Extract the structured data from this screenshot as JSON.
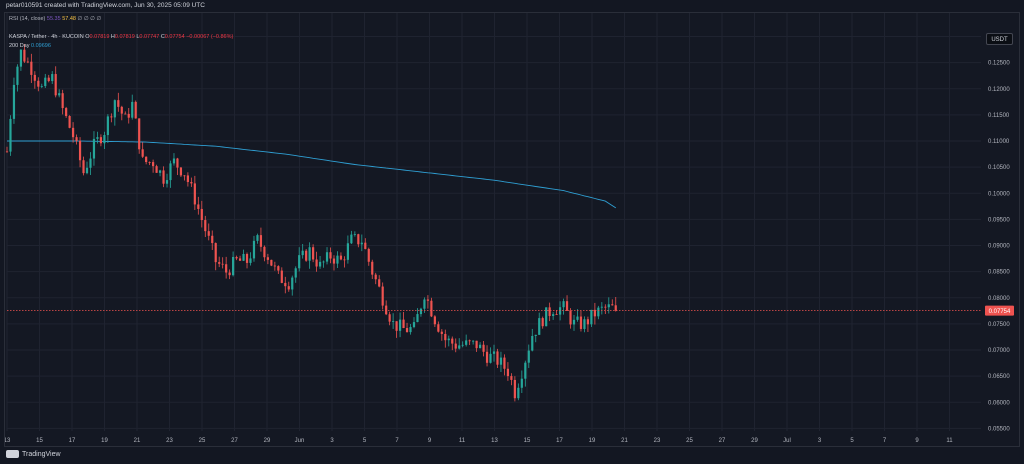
{
  "header": {
    "credit": "petar010591 created with TradingView.com, Jun 30, 2025 05:09 UTC"
  },
  "indicators": {
    "rsi": {
      "label": "RSI (14, close)",
      "value_a": "55.35",
      "value_b": "57.48",
      "trailing": "∅ ∅ ∅ ∅"
    },
    "ma": {
      "label": "200 Day",
      "value": "0.09696",
      "color": "#2f9fd3"
    }
  },
  "legend": {
    "symbol": "KASPA / Tether · 4h · KUCOIN",
    "o_label": "O",
    "o": "0.07819",
    "h_label": "H",
    "h": "0.07819",
    "l_label": "L",
    "l": "0.07747",
    "c_label": "C",
    "c": "0.07754",
    "change": "−0.00067 (−0.86%)"
  },
  "currency_button": "USDT",
  "footer": {
    "brand": "TradingView"
  },
  "chart_data": {
    "type": "candlestick",
    "interval": "4h",
    "up_color": "#26a69a",
    "down_color": "#ef5350",
    "last_price": 0.07754,
    "last_price_label": "0.07754",
    "y_range": [
      0.0545,
      0.1345
    ],
    "y_ticks": [
      "0.13000",
      "0.12500",
      "0.12000",
      "0.11500",
      "0.11000",
      "0.10500",
      "0.10000",
      "0.09500",
      "0.09000",
      "0.08500",
      "0.08000",
      "0.07500",
      "0.07000",
      "0.06500",
      "0.06000",
      "0.05500"
    ],
    "x_ticks": [
      "13",
      "15",
      "17",
      "19",
      "21",
      "23",
      "25",
      "27",
      "29",
      "Jun",
      "3",
      "5",
      "7",
      "9",
      "11",
      "13",
      "15",
      "17",
      "19",
      "21",
      "23",
      "25",
      "27",
      "29",
      "Jul",
      "3",
      "5",
      "7",
      "9",
      "11"
    ],
    "close_path": [
      [
        0,
        0.108
      ],
      [
        2,
        0.122
      ],
      [
        4,
        0.127
      ],
      [
        7,
        0.124
      ],
      [
        10,
        0.12
      ],
      [
        13,
        0.122
      ],
      [
        16,
        0.116
      ],
      [
        19,
        0.111
      ],
      [
        22,
        0.104
      ],
      [
        25,
        0.109
      ],
      [
        28,
        0.112
      ],
      [
        31,
        0.118
      ],
      [
        34,
        0.114
      ],
      [
        36,
        0.117
      ],
      [
        39,
        0.106
      ],
      [
        42,
        0.106
      ],
      [
        45,
        0.103
      ],
      [
        48,
        0.106
      ],
      [
        51,
        0.104
      ],
      [
        54,
        0.099
      ],
      [
        57,
        0.093
      ],
      [
        60,
        0.087
      ],
      [
        63,
        0.085
      ],
      [
        66,
        0.087
      ],
      [
        69,
        0.087
      ],
      [
        72,
        0.091
      ],
      [
        75,
        0.088
      ],
      [
        78,
        0.084
      ],
      [
        81,
        0.083
      ],
      [
        84,
        0.087
      ],
      [
        87,
        0.089
      ],
      [
        90,
        0.086
      ],
      [
        93,
        0.088
      ],
      [
        96,
        0.087
      ],
      [
        99,
        0.091
      ],
      [
        102,
        0.091
      ],
      [
        105,
        0.085
      ],
      [
        108,
        0.08
      ],
      [
        111,
        0.075
      ],
      [
        114,
        0.074
      ],
      [
        117,
        0.074
      ],
      [
        120,
        0.081
      ],
      [
        123,
        0.076
      ],
      [
        126,
        0.072
      ],
      [
        129,
        0.071
      ],
      [
        132,
        0.071
      ],
      [
        135,
        0.071
      ],
      [
        138,
        0.069
      ],
      [
        141,
        0.068
      ],
      [
        144,
        0.066
      ],
      [
        146,
        0.062
      ],
      [
        148,
        0.066
      ],
      [
        151,
        0.073
      ],
      [
        154,
        0.076
      ],
      [
        157,
        0.078
      ],
      [
        160,
        0.078
      ],
      [
        163,
        0.075
      ],
      [
        166,
        0.075
      ],
      [
        169,
        0.077
      ],
      [
        172,
        0.078
      ],
      [
        174,
        0.078
      ],
      [
        175,
        0.0775
      ]
    ],
    "ma200_path": [
      [
        0,
        0.11
      ],
      [
        20,
        0.11
      ],
      [
        40,
        0.1098
      ],
      [
        60,
        0.109
      ],
      [
        80,
        0.1075
      ],
      [
        100,
        0.1055
      ],
      [
        120,
        0.104
      ],
      [
        140,
        0.1025
      ],
      [
        160,
        0.1005
      ],
      [
        172,
        0.0985
      ],
      [
        175,
        0.0972
      ]
    ]
  }
}
